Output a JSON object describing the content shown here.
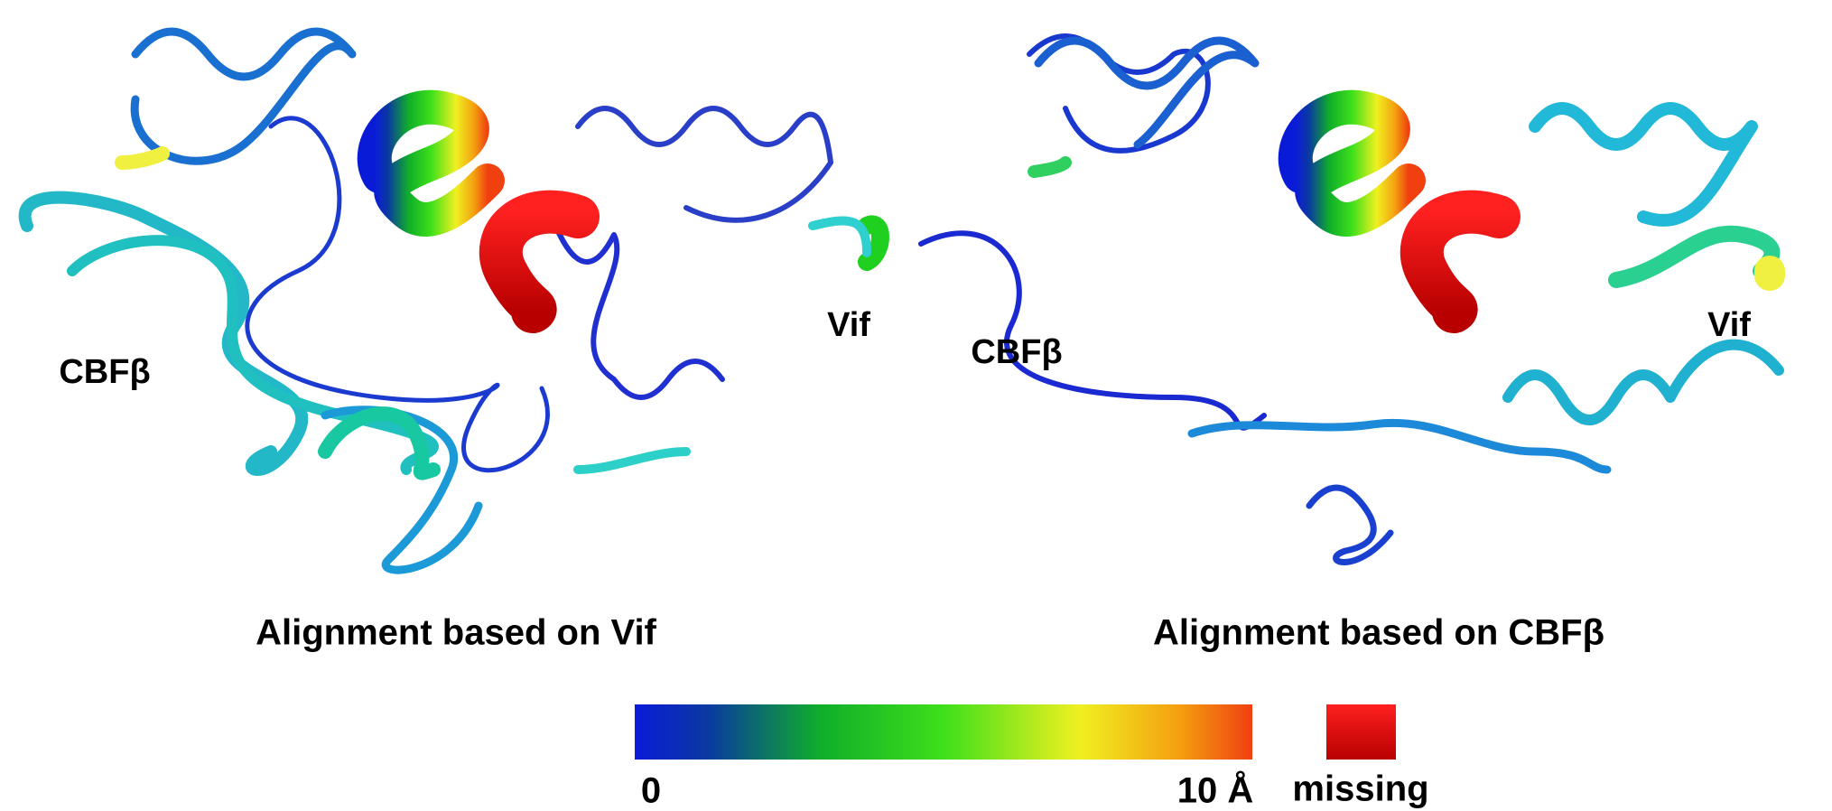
{
  "panels": [
    {
      "caption": "Alignment based on Vif",
      "left_label": "CBFβ",
      "right_label": "Vif"
    },
    {
      "caption": "Alignment based on CBFβ",
      "left_label": "CBFβ",
      "right_label": "Vif"
    }
  ],
  "colorbar": {
    "min_label": "0",
    "max_label": "10 Å",
    "missing_label": "missing"
  }
}
